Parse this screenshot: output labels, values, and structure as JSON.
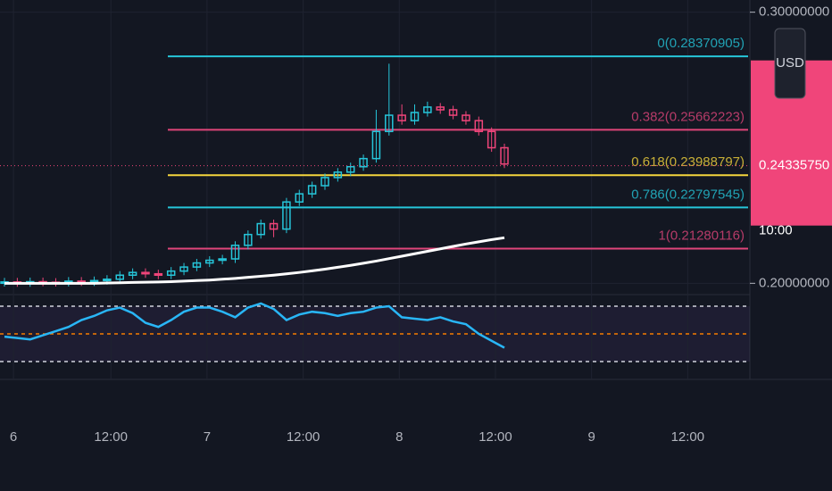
{
  "chart_data": {
    "type": "candlestick",
    "open": [
      0.2003,
      0.2005,
      0.2002,
      0.2006,
      0.2004,
      0.2003,
      0.2008,
      0.2005,
      0.201,
      0.2015,
      0.203,
      0.204,
      0.2035,
      0.203,
      0.2045,
      0.206,
      0.2075,
      0.2085,
      0.209,
      0.214,
      0.218,
      0.222,
      0.22,
      0.23,
      0.233,
      0.236,
      0.239,
      0.241,
      0.243,
      0.246,
      0.256,
      0.262,
      0.26,
      0.263,
      0.265,
      0.264,
      0.262,
      0.26,
      0.256,
      0.25
    ],
    "high": [
      0.202,
      0.202,
      0.2021,
      0.2021,
      0.2019,
      0.2023,
      0.2023,
      0.2025,
      0.203,
      0.2045,
      0.2055,
      0.2055,
      0.205,
      0.206,
      0.2075,
      0.209,
      0.21,
      0.2105,
      0.2155,
      0.2195,
      0.2235,
      0.2235,
      0.2315,
      0.2345,
      0.2375,
      0.2405,
      0.2425,
      0.2445,
      0.2475,
      0.264,
      0.281,
      0.266,
      0.266,
      0.267,
      0.2665,
      0.2655,
      0.2635,
      0.2615,
      0.2575,
      0.2515
    ],
    "low": [
      0.1988,
      0.1987,
      0.1987,
      0.1989,
      0.1988,
      0.1988,
      0.199,
      0.199,
      0.1995,
      0.2,
      0.2015,
      0.202,
      0.2015,
      0.2015,
      0.203,
      0.2045,
      0.206,
      0.207,
      0.2075,
      0.2125,
      0.2165,
      0.217,
      0.2185,
      0.2285,
      0.2315,
      0.2345,
      0.2375,
      0.2395,
      0.2415,
      0.2445,
      0.2545,
      0.2585,
      0.2585,
      0.2615,
      0.2625,
      0.2605,
      0.2585,
      0.2545,
      0.2485,
      0.2425
    ],
    "close": [
      0.2005,
      0.2002,
      0.2006,
      0.2004,
      0.2003,
      0.2008,
      0.2005,
      0.201,
      0.2015,
      0.203,
      0.204,
      0.2035,
      0.203,
      0.2045,
      0.206,
      0.2075,
      0.2085,
      0.209,
      0.214,
      0.218,
      0.222,
      0.22,
      0.23,
      0.233,
      0.236,
      0.239,
      0.241,
      0.243,
      0.246,
      0.256,
      0.262,
      0.26,
      0.263,
      0.265,
      0.264,
      0.262,
      0.26,
      0.256,
      0.25,
      0.244
    ],
    "up_color": "#26c6da",
    "down_color": "#f0457a",
    "moving_average": {
      "color": "#ffffff",
      "values": [
        0.2,
        0.2,
        0.2,
        0.2,
        0.2,
        0.2,
        0.2,
        0.2,
        0.2001,
        0.2002,
        0.2003,
        0.2004,
        0.2005,
        0.2006,
        0.2008,
        0.201,
        0.2012,
        0.2015,
        0.2018,
        0.2022,
        0.2026,
        0.203,
        0.2035,
        0.204,
        0.2046,
        0.2052,
        0.2059,
        0.2066,
        0.2074,
        0.2082,
        0.2091,
        0.21,
        0.2109,
        0.2118,
        0.2127,
        0.2136,
        0.2145,
        0.2153,
        0.2161,
        0.2168
      ]
    },
    "fib_levels": [
      {
        "value": 0.28370905,
        "label": "0(0.28370905)",
        "color": "#26c6da"
      },
      {
        "value": 0.25662223,
        "label": "0.382(0.25662223)",
        "color": "#e0457a"
      },
      {
        "value": 0.23988797,
        "label": "0.618(0.23988797)",
        "color": "#f5d63d"
      },
      {
        "value": 0.22797545,
        "label": "0.786(0.22797545)",
        "color": "#26c6da"
      },
      {
        "value": 0.21280116,
        "label": "1(0.21280116)",
        "color": "#e0457a"
      }
    ],
    "ylim": [
      0.1955,
      0.3045
    ],
    "yticks": [
      {
        "value": 0.3,
        "label": "0.30000000"
      },
      {
        "value": 0.2,
        "label": "0.20000000"
      }
    ],
    "last_price": {
      "value": 0.2433575,
      "label": "0.24335750"
    },
    "countdown": "10:00",
    "currency": "USD",
    "xlim": [
      -0.35,
      58.15
    ],
    "xticks": [
      {
        "value": 0.7,
        "label": "6"
      },
      {
        "value": 8.3,
        "label": "12:00"
      },
      {
        "value": 15.8,
        "label": "7"
      },
      {
        "value": 23.3,
        "label": "12:00"
      },
      {
        "value": 30.8,
        "label": "8"
      },
      {
        "value": 38.3,
        "label": "12:00"
      },
      {
        "value": 45.8,
        "label": "9"
      },
      {
        "value": 53.3,
        "label": "12:00"
      }
    ],
    "rsi": {
      "color": "#29b6f6",
      "levels": [
        70,
        50,
        30
      ],
      "values": [
        48,
        47,
        46,
        49,
        52,
        55,
        60,
        63,
        67,
        69,
        65,
        58,
        55,
        60,
        66,
        69,
        69,
        66,
        62,
        69,
        72,
        68,
        60,
        64,
        66,
        65,
        63,
        65,
        66,
        69,
        70,
        62,
        61,
        60,
        62,
        59,
        57,
        50,
        45,
        40
      ]
    }
  }
}
